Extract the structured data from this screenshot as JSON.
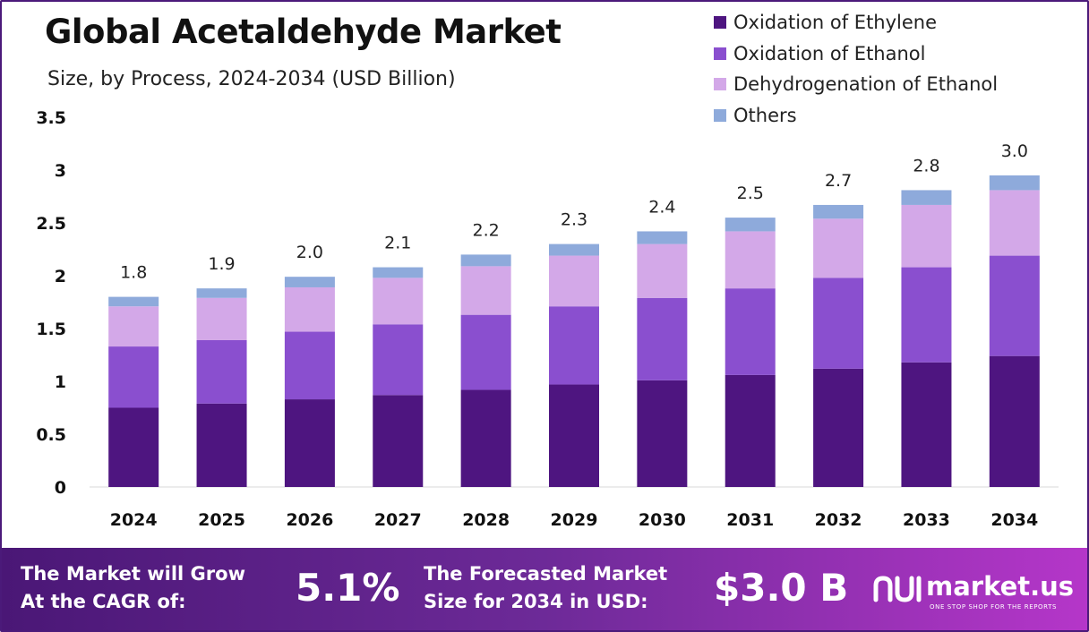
{
  "header": {
    "title": "Global Acetaldehyde Market",
    "subtitle": "Size, by Process, 2024-2034 (USD Billion)"
  },
  "legend": [
    {
      "label": "Oxidation of Ethylene",
      "color": "#4e1580"
    },
    {
      "label": "Oxidation of Ethanol",
      "color": "#8a4fcf"
    },
    {
      "label": "Dehydrogenation of Ethanol",
      "color": "#d3a8e8"
    },
    {
      "label": "Others",
      "color": "#8eaadb"
    }
  ],
  "chart_data": {
    "type": "bar",
    "stacked": true,
    "categories": [
      "2024",
      "2025",
      "2026",
      "2027",
      "2028",
      "2029",
      "2030",
      "2031",
      "2032",
      "2033",
      "2034"
    ],
    "series": [
      {
        "name": "Oxidation of Ethylene",
        "color": "#4e1580",
        "values": [
          0.75,
          0.79,
          0.83,
          0.87,
          0.92,
          0.97,
          1.01,
          1.06,
          1.12,
          1.18,
          1.24
        ]
      },
      {
        "name": "Oxidation of Ethanol",
        "color": "#8a4fcf",
        "values": [
          0.58,
          0.6,
          0.64,
          0.67,
          0.71,
          0.74,
          0.78,
          0.82,
          0.86,
          0.9,
          0.95
        ]
      },
      {
        "name": "Dehydrogenation of Ethanol",
        "color": "#d3a8e8",
        "values": [
          0.38,
          0.4,
          0.42,
          0.44,
          0.46,
          0.48,
          0.51,
          0.54,
          0.56,
          0.59,
          0.62
        ]
      },
      {
        "name": "Others",
        "color": "#8eaadb",
        "values": [
          0.09,
          0.09,
          0.1,
          0.1,
          0.11,
          0.11,
          0.12,
          0.13,
          0.13,
          0.14,
          0.14
        ]
      }
    ],
    "totals_labels": [
      "1.8",
      "1.9",
      "2.0",
      "2.1",
      "2.2",
      "2.3",
      "2.4",
      "2.5",
      "2.7",
      "2.8",
      "3.0"
    ],
    "y_ticks": [
      "0",
      "0.5",
      "1",
      "1.5",
      "2",
      "2.5",
      "3",
      "3.5"
    ],
    "ylim": [
      0,
      3.5
    ],
    "grid": false,
    "legend_position": "top-right"
  },
  "footer": {
    "cagr_label_line1": "The Market will Grow",
    "cagr_label_line2": "At the CAGR of:",
    "cagr_value": "5.1%",
    "forecast_label_line1": "The Forecasted Market",
    "forecast_label_line2": "Size for 2034 in USD:",
    "forecast_value": "$3.0 B",
    "brand_name": "market.us",
    "brand_tagline": "ONE STOP SHOP FOR THE REPORTS"
  }
}
